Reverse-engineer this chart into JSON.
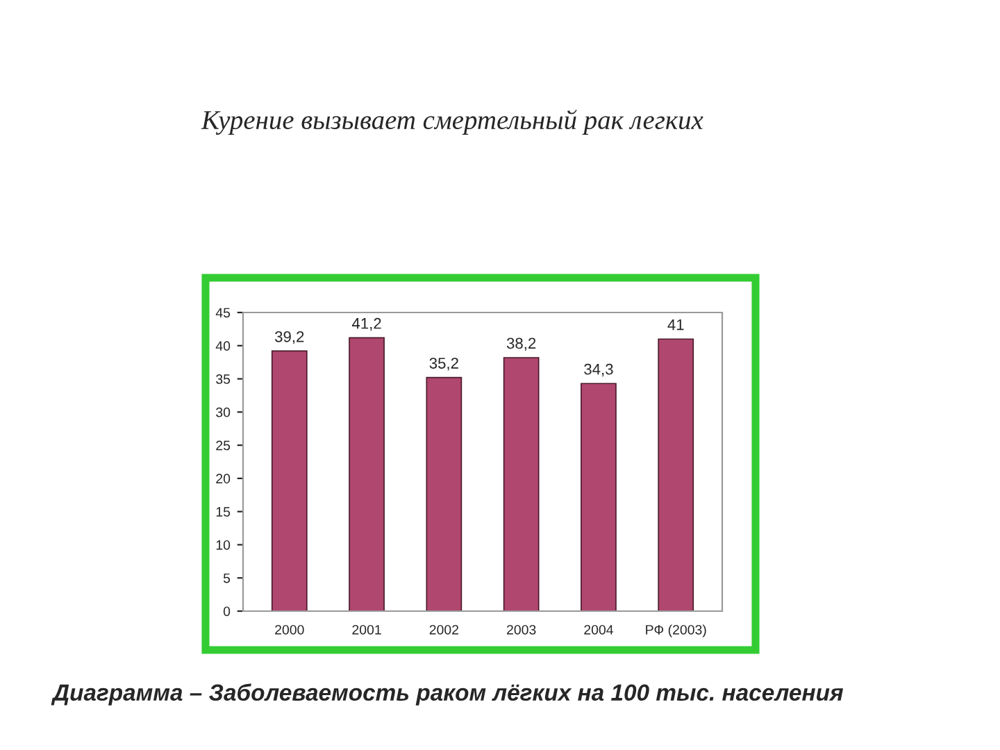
{
  "chart_data": {
    "type": "bar",
    "title": "Курение вызывает смертельный рак легких",
    "categories": [
      "2000",
      "2001",
      "2002",
      "2003",
      "2004",
      "РФ (2003)"
    ],
    "values": [
      39.2,
      41.2,
      35.2,
      38.2,
      34.3,
      41
    ],
    "value_labels": [
      "39,2",
      "41,2",
      "35,2",
      "38,2",
      "34,3",
      "41"
    ],
    "color": "#b0476e",
    "ylim": [
      0,
      45
    ],
    "yticks": [
      0,
      5,
      10,
      15,
      20,
      25,
      30,
      35,
      40,
      45
    ],
    "grid": false,
    "legend": false,
    "annotations": [
      "Диаграмма – Заболеваемость раком лёгких на 100 тыс. населения"
    ]
  }
}
